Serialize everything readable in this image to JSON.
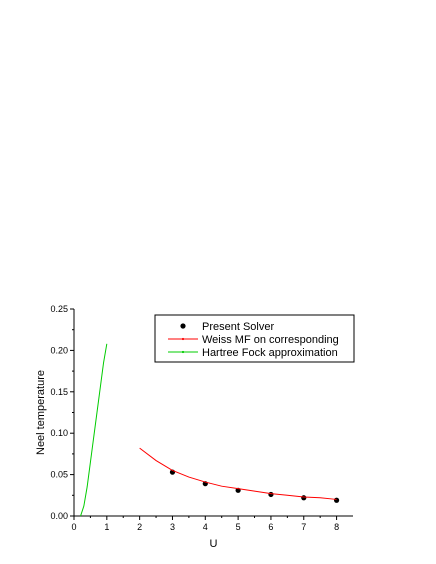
{
  "chart_data": {
    "type": "line",
    "xlabel": "U",
    "ylabel": "Neel temperature",
    "xlim": [
      0,
      8.5
    ],
    "ylim": [
      0,
      0.25
    ],
    "xticks": [
      "0",
      "1",
      "2",
      "3",
      "4",
      "5",
      "6",
      "7",
      "8"
    ],
    "yticks": [
      "0.00",
      "0.05",
      "0.10",
      "0.15",
      "0.20",
      "0.25"
    ],
    "grid": false,
    "legend_position": "top-right",
    "series": [
      {
        "name": "Present Solver",
        "kind": "scatter",
        "color": "#000000",
        "x": [
          3,
          4,
          5,
          6,
          7,
          8
        ],
        "y": [
          0.053,
          0.039,
          0.031,
          0.026,
          0.022,
          0.019
        ]
      },
      {
        "name": "Weiss MF on corresponding",
        "kind": "line",
        "color": "#ff0000",
        "x": [
          2.0,
          2.5,
          3.0,
          3.5,
          4.0,
          4.5,
          5.0,
          5.5,
          6.0,
          6.5,
          7.0,
          7.5,
          8.0
        ],
        "y": [
          0.082,
          0.067,
          0.055,
          0.047,
          0.041,
          0.036,
          0.033,
          0.03,
          0.027,
          0.025,
          0.023,
          0.022,
          0.02
        ]
      },
      {
        "name": "Hartree Fock approximation",
        "kind": "line",
        "color": "#00cc00",
        "x": [
          0.2,
          0.3,
          0.4,
          0.5,
          0.6,
          0.7,
          0.8,
          0.9,
          1.0
        ],
        "y": [
          0.0,
          0.012,
          0.035,
          0.065,
          0.095,
          0.125,
          0.155,
          0.185,
          0.208
        ]
      }
    ]
  }
}
